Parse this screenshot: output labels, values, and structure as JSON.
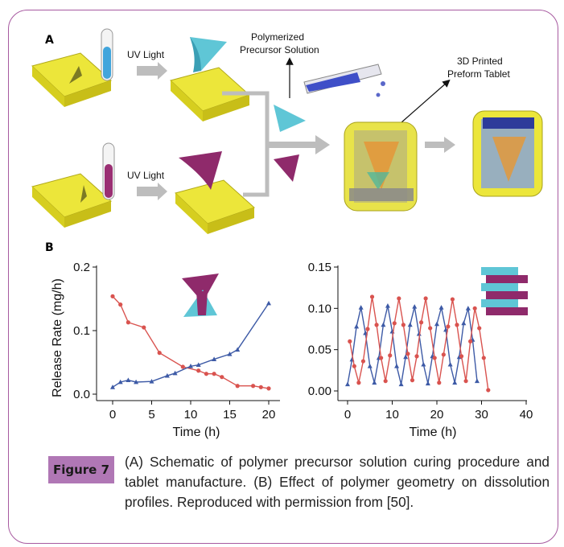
{
  "panel_a": {
    "label": "A",
    "uv_top": "UV Light",
    "uv_bottom": "UV Light",
    "polymerized_line1": "Polymerized",
    "polymerized_line2": "Precursor Solution",
    "printed_line1": "3D Printed",
    "printed_line2": "Preform Tablet"
  },
  "panel_b": {
    "label": "B"
  },
  "chart_data": [
    {
      "type": "line",
      "xlabel": "Time (h)",
      "ylabel": "Release Rate (mg/h)",
      "xlim": [
        0,
        20
      ],
      "ylim": [
        0,
        0.2
      ],
      "xticks": [
        "0",
        "5",
        "10",
        "15",
        "20"
      ],
      "yticks": [
        "0.0",
        "0.1",
        "0.2"
      ],
      "series": [
        {
          "color": "#d9534f",
          "marker": "circle",
          "x": [
            0,
            1,
            2,
            4,
            6,
            9,
            11,
            12,
            13,
            14,
            16,
            18,
            19,
            20
          ],
          "y": [
            0.154,
            0.141,
            0.113,
            0.105,
            0.065,
            0.043,
            0.037,
            0.032,
            0.032,
            0.027,
            0.013,
            0.013,
            0.011,
            0.009
          ]
        },
        {
          "color": "#3d5aa6",
          "marker": "triangle",
          "x": [
            0,
            1,
            2,
            3,
            5,
            7,
            8,
            10,
            11,
            13,
            15,
            16,
            20
          ],
          "y": [
            0.011,
            0.019,
            0.022,
            0.019,
            0.02,
            0.029,
            0.033,
            0.044,
            0.046,
            0.055,
            0.063,
            0.07,
            0.143
          ]
        }
      ]
    },
    {
      "type": "line",
      "xlabel": "Time (h)",
      "ylabel": "",
      "xlim": [
        0,
        40
      ],
      "ylim": [
        0,
        0.15
      ],
      "xticks": [
        "0",
        "10",
        "20",
        "30",
        "40"
      ],
      "yticks": [
        "0.00",
        "0.05",
        "0.10",
        "0.15"
      ],
      "series": [
        {
          "color": "#3d5aa6",
          "marker": "triangle",
          "x": [
            0,
            1,
            2,
            3,
            4,
            5,
            6,
            7,
            8,
            9,
            10,
            11,
            12,
            13,
            14,
            15,
            16,
            17,
            18,
            19,
            20,
            21,
            22,
            23,
            24,
            25,
            26,
            27,
            28,
            29
          ],
          "y": [
            0.008,
            0.038,
            0.078,
            0.101,
            0.07,
            0.03,
            0.01,
            0.04,
            0.08,
            0.103,
            0.072,
            0.03,
            0.008,
            0.041,
            0.08,
            0.102,
            0.069,
            0.032,
            0.009,
            0.042,
            0.081,
            0.101,
            0.074,
            0.032,
            0.01,
            0.041,
            0.082,
            0.1,
            0.062,
            0.012
          ]
        },
        {
          "color": "#d9534f",
          "marker": "circle",
          "x": [
            0.5,
            1.5,
            2.5,
            3.5,
            4.5,
            5.5,
            6.5,
            7.5,
            8.5,
            9.5,
            10.5,
            11.5,
            12.5,
            13.5,
            14.5,
            15.5,
            16.5,
            17.5,
            18.5,
            19.5,
            20.5,
            21.5,
            22.5,
            23.5,
            24.5,
            25.5,
            26.5,
            27.5,
            28.5,
            29.5,
            30.5,
            31.5
          ],
          "y": [
            0.06,
            0.03,
            0.01,
            0.036,
            0.075,
            0.114,
            0.08,
            0.04,
            0.012,
            0.043,
            0.082,
            0.112,
            0.08,
            0.045,
            0.013,
            0.042,
            0.083,
            0.112,
            0.076,
            0.04,
            0.01,
            0.044,
            0.078,
            0.111,
            0.08,
            0.042,
            0.012,
            0.06,
            0.1,
            0.076,
            0.04,
            0.001
          ]
        }
      ]
    }
  ],
  "caption": {
    "badge": "Figure 7",
    "text": "(A) Schematic of polymer precursor solution curing procedure and tablet manufacture. (B) Effect of polymer geometry on dissolution profiles. Reproduced with permission from [50]."
  }
}
